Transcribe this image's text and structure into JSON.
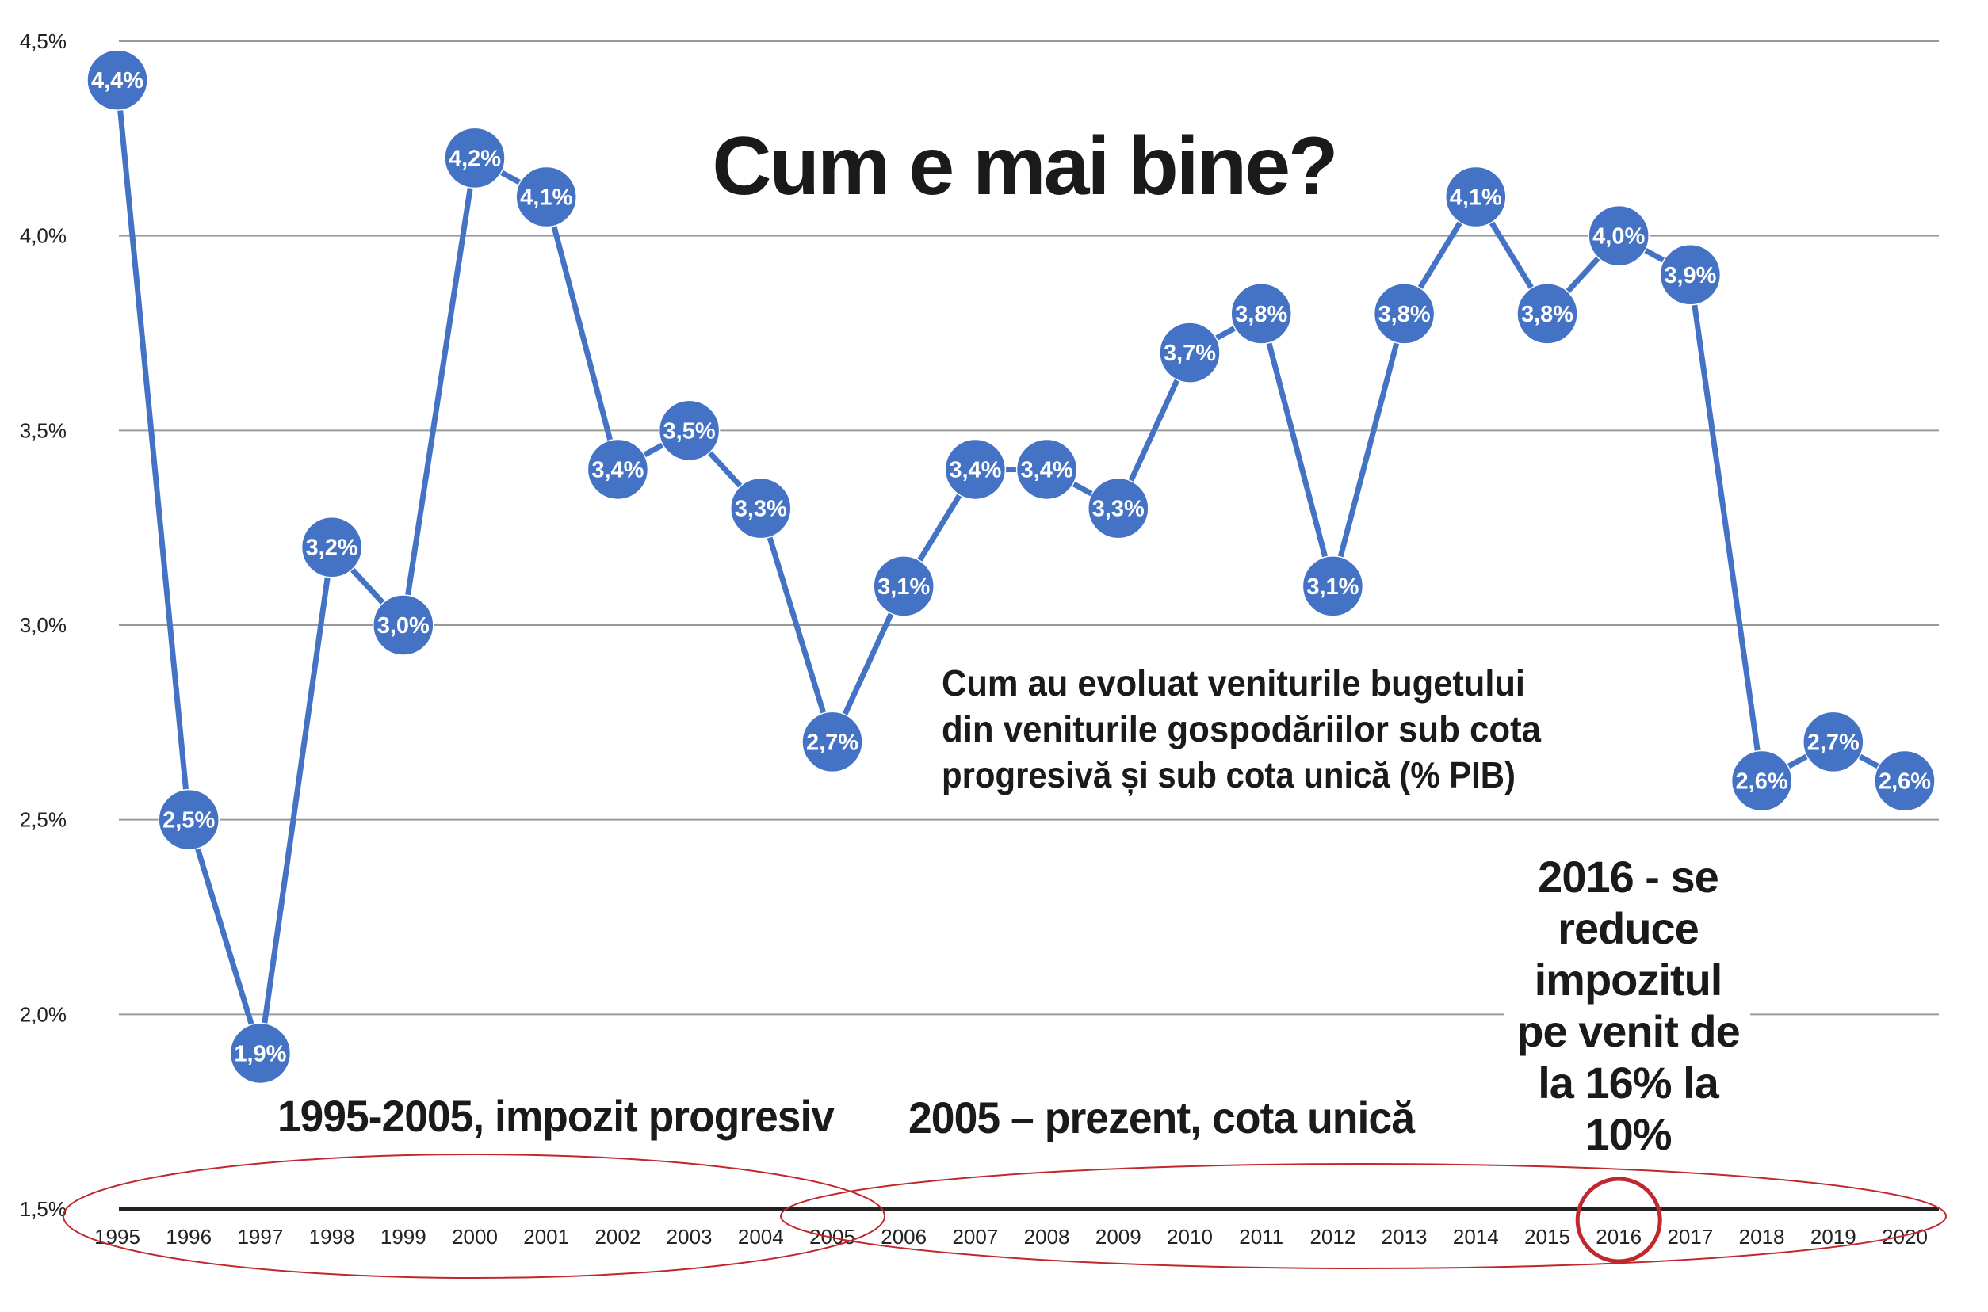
{
  "chart_data": {
    "type": "line",
    "title": "Cum e mai bine?",
    "subtitle_lines": [
      "Cum au evoluat veniturile bugetului",
      "din veniturile gospodăriilor  sub cota",
      "progresivă și sub cota unică (% PIB)"
    ],
    "x": [
      "1995",
      "1996",
      "1997",
      "1998",
      "1999",
      "2000",
      "2001",
      "2002",
      "2003",
      "2004",
      "2005",
      "2006",
      "2007",
      "2008",
      "2009",
      "2010",
      "2011",
      "2012",
      "2013",
      "2014",
      "2015",
      "2016",
      "2017",
      "2018",
      "2019",
      "2020"
    ],
    "series": [
      {
        "values": [
          4.4,
          2.5,
          1.9,
          3.2,
          3.0,
          4.2,
          4.1,
          3.4,
          3.5,
          3.3,
          2.7,
          3.1,
          3.4,
          3.4,
          3.3,
          3.7,
          3.8,
          3.1,
          3.8,
          4.1,
          3.8,
          4.0,
          3.9,
          2.6,
          2.7,
          2.6
        ],
        "labels": [
          "4,4%",
          "2,5%",
          "1,9%",
          "3,2%",
          "3,0%",
          "4,2%",
          "4,1%",
          "3,4%",
          "3,5%",
          "3,3%",
          "2,7%",
          "3,1%",
          "3,4%",
          "3,4%",
          "3,3%",
          "3,7%",
          "3,8%",
          "3,1%",
          "3,8%",
          "4,1%",
          "3,8%",
          "4,0%",
          "3,9%",
          "2,6%",
          "2,7%",
          "2,6%"
        ],
        "color": "#4472c4"
      }
    ],
    "ylim": [
      1.5,
      4.5
    ],
    "y_ticks": [
      1.5,
      2.0,
      2.5,
      3.0,
      3.5,
      4.0,
      4.5
    ],
    "y_tick_labels": [
      "1,5%",
      "2,0%",
      "2,5%",
      "3,0%",
      "3,5%",
      "4,0%",
      "4,5%"
    ],
    "grid": true,
    "annotations": {
      "period_progressive": "1995-2005, impozit progresiv",
      "period_flat": "2005 – prezent, cota unică",
      "note_2016_lines": [
        "2016 - se",
        "reduce",
        "impozitul",
        "pe venit de",
        "la 16% la",
        "10%"
      ]
    },
    "colors": {
      "line": "#4472c4",
      "grid": "#9a9a9a",
      "ellipse": "#c0282d",
      "axis": "#222222"
    }
  }
}
